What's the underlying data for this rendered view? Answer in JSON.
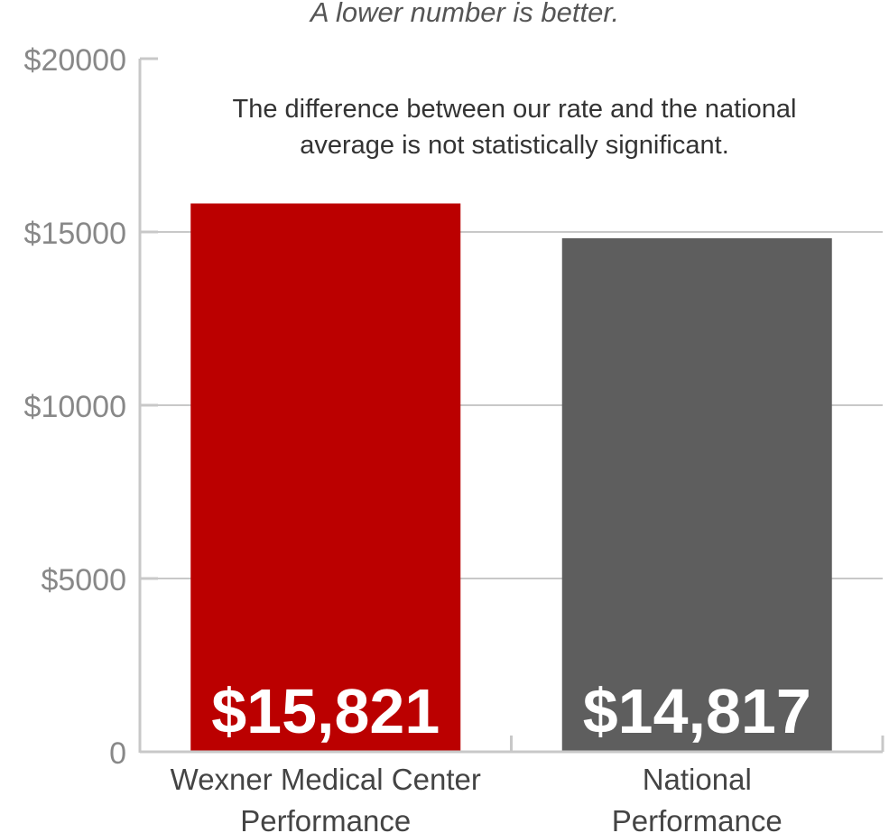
{
  "chart_data": {
    "type": "bar",
    "title": "A lower number is better.",
    "annotation": [
      "The difference between our rate and the national",
      "average is not statistically significant."
    ],
    "categories": [
      [
        "Wexner Medical Center",
        "Performance"
      ],
      [
        "National",
        "Performance"
      ]
    ],
    "values": [
      15821,
      14817
    ],
    "value_labels": [
      "$15,821",
      "$14,817"
    ],
    "colors": [
      "#bb0000",
      "#5e5e5e"
    ],
    "ylim": [
      0,
      20000
    ],
    "yticks": [
      0,
      5000,
      10000,
      15000,
      20000
    ],
    "ytick_labels": [
      "0",
      "$5000",
      "$10000",
      "$15000",
      "$20000"
    ],
    "grid": true,
    "xlabel": "",
    "ylabel": ""
  }
}
